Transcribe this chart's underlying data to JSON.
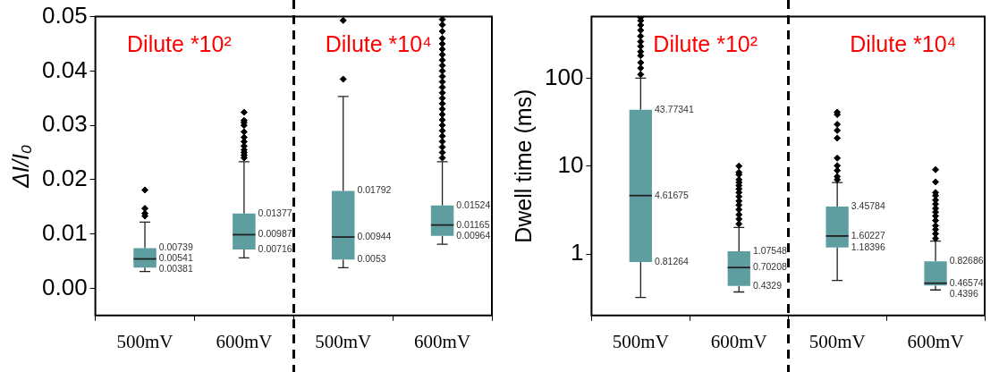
{
  "chart_data": [
    {
      "type": "box",
      "ylabel": "ΔI/I₀",
      "categories": [
        "500mV",
        "600mV",
        "500mV",
        "600mV"
      ],
      "color": "#5f9ea0",
      "marker": "diamond",
      "ylim": [
        -0.005,
        0.05
      ],
      "yticks": [
        {
          "value": 0,
          "label": "0.00"
        },
        0.01,
        0.02,
        0.03,
        0.04,
        0.05
      ],
      "boxes": [
        {
          "low": 0.0031,
          "q1": 0.00381,
          "median": 0.00541,
          "q3": 0.00739,
          "high": 0.0122,
          "outliers": [
            0.0133,
            0.0138,
            0.0147,
            0.0181
          ]
        },
        {
          "low": 0.0056,
          "q1": 0.00716,
          "median": 0.00987,
          "q3": 0.01377,
          "high": 0.0233,
          "outliers": [
            0.024,
            0.0245,
            0.025,
            0.0255,
            0.0262,
            0.027,
            0.0278,
            0.0288,
            0.03,
            0.0305,
            0.0309,
            0.0324
          ]
        },
        {
          "low": 0.0038,
          "q1": 0.0053,
          "median": 0.00944,
          "q3": 0.01792,
          "high": 0.0353,
          "outliers": [
            0.0385,
            0.0493
          ]
        },
        {
          "low": 0.0081,
          "q1": 0.00964,
          "median": 0.01165,
          "q3": 0.01524,
          "high": 0.0233,
          "outliers": [
            0.024,
            0.025,
            0.026,
            0.027,
            0.028,
            0.029,
            0.03,
            0.031,
            0.032,
            0.033,
            0.034,
            0.035,
            0.036,
            0.037,
            0.038,
            0.039,
            0.04,
            0.041,
            0.042,
            0.043,
            0.044,
            0.045,
            0.046,
            0.0473,
            0.0485,
            0.0495
          ]
        }
      ],
      "annotations": [
        "Dilute *10²",
        "Dilute *10⁴",
        "0.00739",
        "0.00541",
        "0.00381",
        "0.01377",
        "0.00987",
        "0.00716",
        "0.01792",
        "0.00944",
        "0.0053",
        "0.01524",
        "0.01165",
        "0.00964"
      ]
    },
    {
      "type": "box",
      "ylabel": "Dwell time (ms)",
      "categories": [
        "500mV",
        "600mV",
        "500mV",
        "600mV"
      ],
      "color": "#5f9ea0",
      "marker": "diamond",
      "log": true,
      "ylim": [
        0.2,
        500
      ],
      "yticks": [
        1,
        10,
        100
      ],
      "boxes": [
        {
          "low": 0.32,
          "q1": 0.81264,
          "median": 4.61675,
          "q3": 43.77341,
          "high": 100,
          "outliers": [
            110,
            130,
            150,
            180,
            200,
            230,
            260,
            300,
            350,
            400,
            450,
            490
          ]
        },
        {
          "low": 0.37,
          "q1": 0.4329,
          "median": 0.70208,
          "q3": 1.07548,
          "high": 2,
          "outliers": [
            2.2,
            2.5,
            2.8,
            3.2,
            3.6,
            4,
            4.5,
            5,
            5.5,
            6,
            6.5,
            7,
            8,
            8.5,
            10
          ]
        },
        {
          "low": 0.5,
          "q1": 1.18396,
          "median": 1.60227,
          "q3": 3.45784,
          "high": 6.5,
          "outliers": [
            7,
            7.6,
            8.9,
            10.1,
            12.3,
            20.8,
            25.4,
            29.8,
            38.5,
            41
          ]
        },
        {
          "low": 0.39,
          "q1": 0.4396,
          "median": 0.46574,
          "q3": 0.82686,
          "high": 1.4,
          "outliers": [
            1.5,
            1.7,
            1.9,
            2.1,
            2.4,
            2.7,
            3,
            3.3,
            3.7,
            4.1,
            4.6,
            5,
            6.6,
            9.1
          ]
        }
      ],
      "annotations": [
        "Dilute *10²",
        "Dilute *10⁴",
        "43.77341",
        "4.61675",
        "0.81264",
        "1.07548",
        "0.70208",
        "0.4329",
        "3.45784",
        "1.60227",
        "1.18396",
        "0.82686",
        "0.46574",
        "0.4396"
      ]
    }
  ]
}
